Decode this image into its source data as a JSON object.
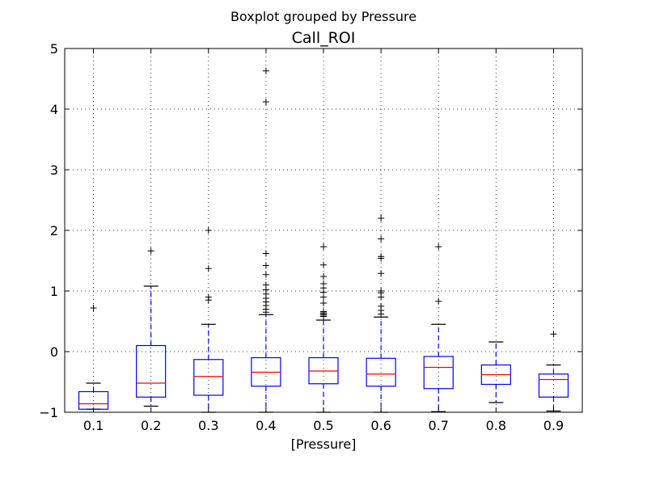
{
  "chart_data": {
    "type": "box",
    "suptitle": "Boxplot grouped by Pressure",
    "title": "Call_ROI",
    "xlabel": "[Pressure]",
    "ylabel": "",
    "ylim": [
      -1,
      5
    ],
    "yticks": [
      "−1",
      "0",
      "1",
      "2",
      "3",
      "4",
      "5"
    ],
    "grid": true,
    "categories": [
      "0.1",
      "0.2",
      "0.3",
      "0.4",
      "0.5",
      "0.6",
      "0.7",
      "0.8",
      "0.9"
    ],
    "boxes": [
      {
        "category": "0.1",
        "whisker_low": -0.95,
        "q1": -0.95,
        "median": -0.86,
        "q3": -0.66,
        "whisker_high": -0.52,
        "outliers": [
          0.72
        ]
      },
      {
        "category": "0.2",
        "whisker_low": -0.9,
        "q1": -0.75,
        "median": -0.52,
        "q3": 0.1,
        "whisker_high": 1.08,
        "outliers": [
          1.66
        ]
      },
      {
        "category": "0.3",
        "whisker_low": -1.0,
        "q1": -0.72,
        "median": -0.41,
        "q3": -0.13,
        "whisker_high": 0.45,
        "outliers": [
          0.85,
          0.9,
          1.37,
          2.0
        ]
      },
      {
        "category": "0.4",
        "whisker_low": -1.0,
        "q1": -0.57,
        "median": -0.34,
        "q3": -0.1,
        "whisker_high": 0.61,
        "outliers": [
          0.65,
          0.7,
          0.76,
          0.82,
          0.88,
          0.95,
          1.02,
          1.1,
          1.27,
          1.42,
          1.62,
          4.12,
          4.63
        ]
      },
      {
        "category": "0.5",
        "whisker_low": -1.0,
        "q1": -0.53,
        "median": -0.32,
        "q3": -0.1,
        "whisker_high": 0.52,
        "outliers": [
          0.58,
          0.6,
          0.62,
          0.64,
          0.66,
          0.8,
          0.9,
          0.98,
          1.05,
          1.12,
          1.24,
          1.43,
          1.73
        ]
      },
      {
        "category": "0.6",
        "whisker_low": -1.0,
        "q1": -0.57,
        "median": -0.37,
        "q3": -0.11,
        "whisker_high": 0.57,
        "outliers": [
          0.62,
          0.68,
          0.75,
          0.9,
          0.97,
          1.0,
          1.29,
          1.54,
          1.57,
          1.86,
          2.2
        ]
      },
      {
        "category": "0.7",
        "whisker_low": -0.99,
        "q1": -0.61,
        "median": -0.26,
        "q3": -0.08,
        "whisker_high": 0.45,
        "outliers": [
          0.83,
          1.73
        ]
      },
      {
        "category": "0.8",
        "whisker_low": -0.84,
        "q1": -0.54,
        "median": -0.38,
        "q3": -0.22,
        "whisker_high": 0.16,
        "outliers": []
      },
      {
        "category": "0.9",
        "whisker_low": -0.98,
        "q1": -0.75,
        "median": -0.46,
        "q3": -0.37,
        "whisker_high": -0.22,
        "outliers": [
          0.29
        ]
      }
    ],
    "colors": {
      "box": "#0000ff",
      "median": "#ff0000",
      "whisker": "#0000ff",
      "cap": "#000000",
      "flier": "#000000",
      "grid": "#000000"
    }
  }
}
